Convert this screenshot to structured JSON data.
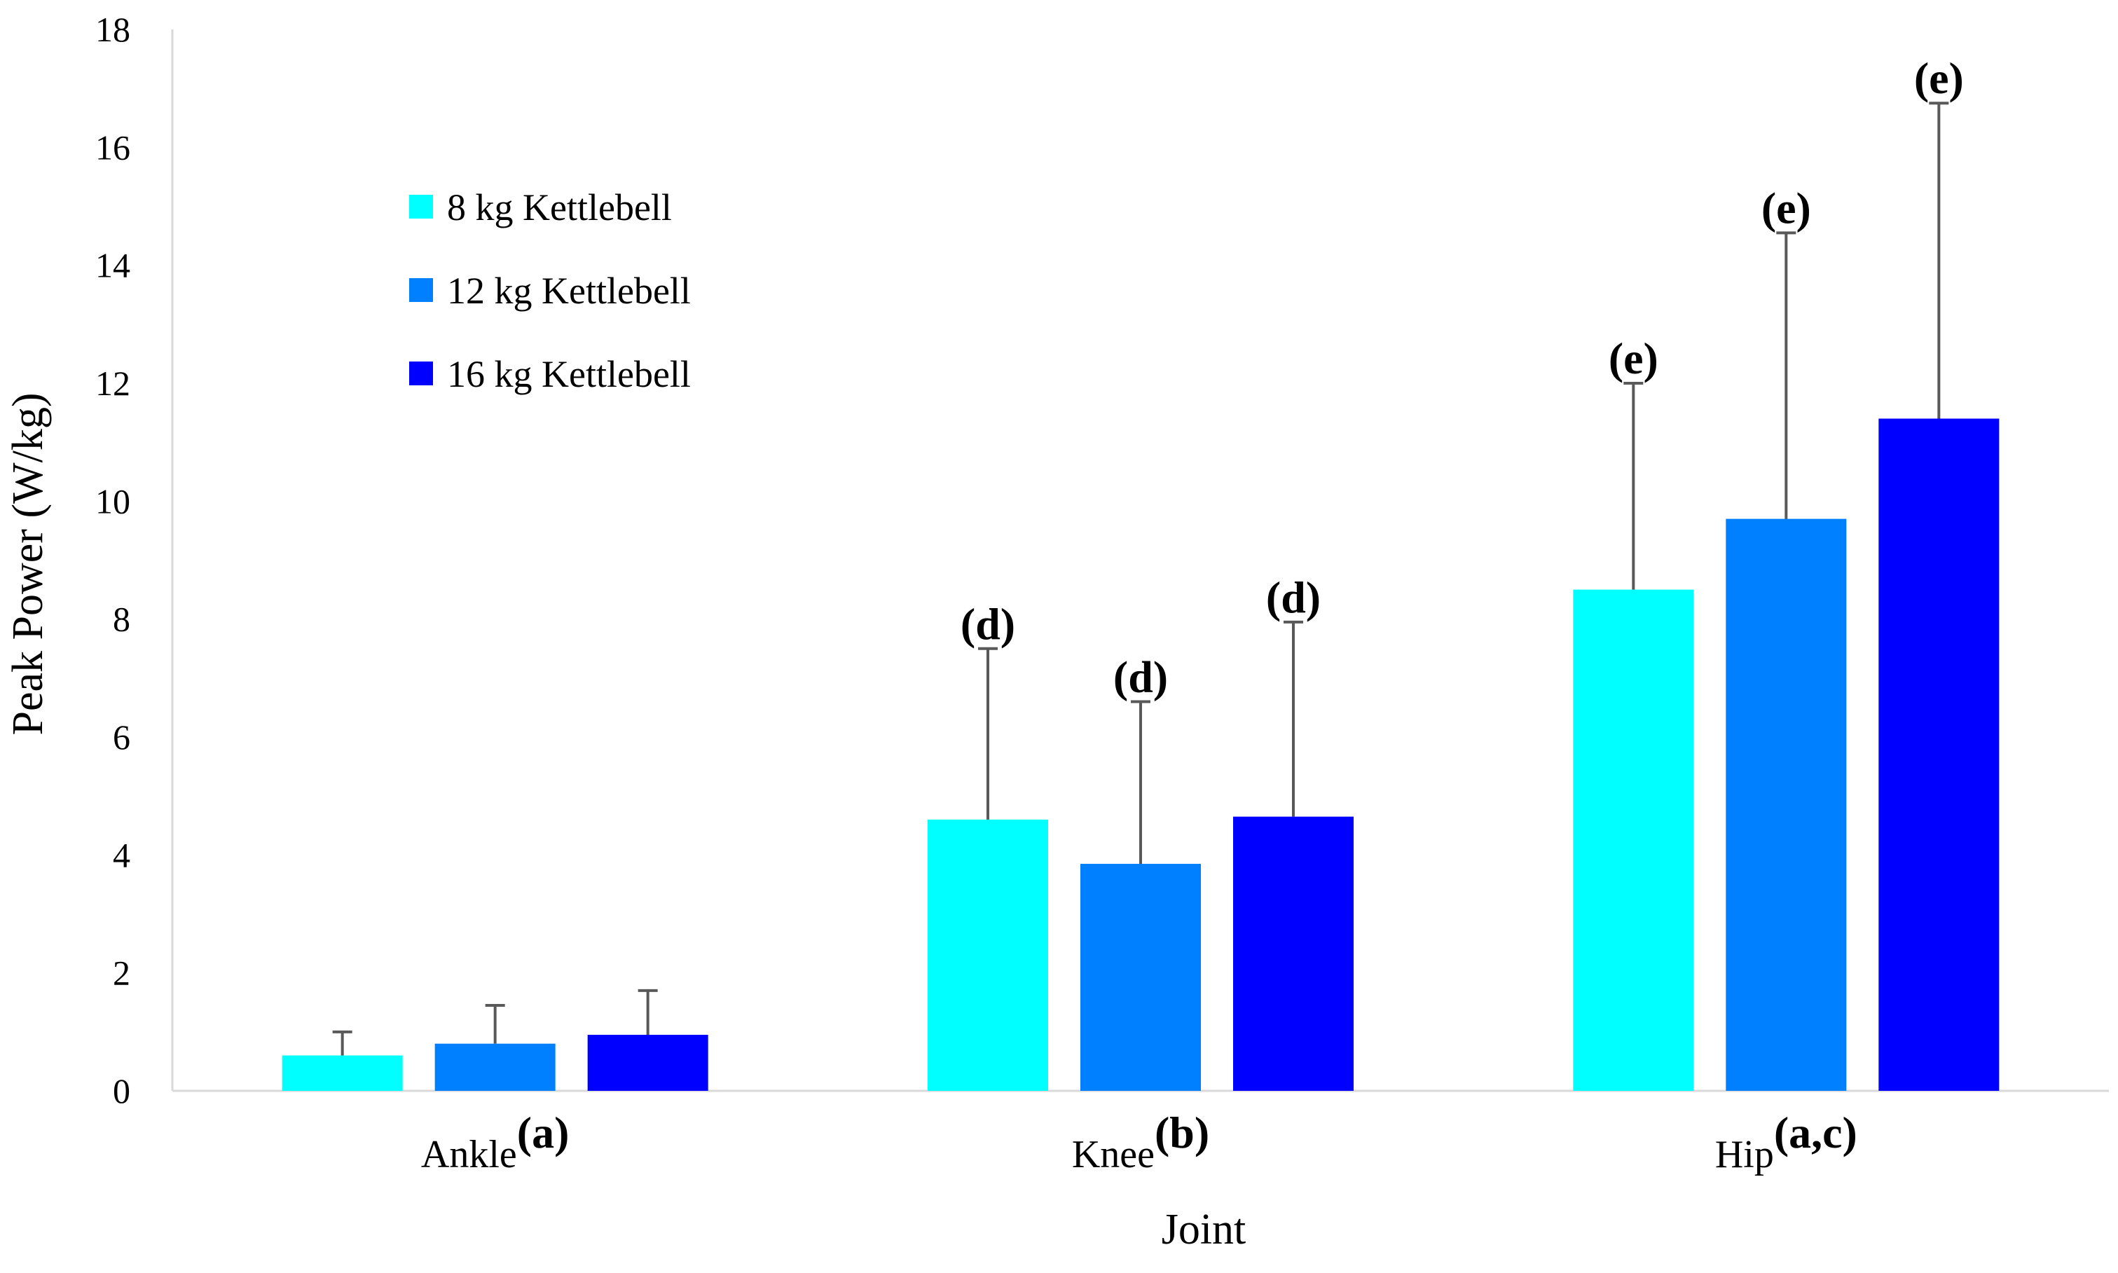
{
  "chart_data": {
    "type": "bar",
    "title": "",
    "xlabel": "Joint",
    "ylabel": "Peak Power (W/kg)",
    "ylim": [
      0,
      18
    ],
    "yticks": [
      0,
      2,
      4,
      6,
      8,
      10,
      12,
      14,
      16,
      18
    ],
    "grid": false,
    "legend_position": "top-left",
    "categories": [
      "Ankle",
      "Knee",
      "Hip"
    ],
    "category_superscripts": [
      "(a)",
      "(b)",
      "(a,c)"
    ],
    "series": [
      {
        "name": "8 kg Kettlebell",
        "color": "#00FFFF",
        "values": [
          0.6,
          4.6,
          8.5
        ],
        "error_upper": [
          1.0,
          7.5,
          12.0
        ],
        "annotations": [
          "",
          "(d)",
          "(e)"
        ]
      },
      {
        "name": "12 kg Kettlebell",
        "color": "#0080FF",
        "values": [
          0.8,
          3.85,
          9.7
        ],
        "error_upper": [
          1.45,
          6.6,
          14.55
        ],
        "annotations": [
          "",
          "(d)",
          "(e)"
        ]
      },
      {
        "name": "16 kg Kettlebell",
        "color": "#0000FF",
        "values": [
          0.95,
          4.65,
          11.4
        ],
        "error_upper": [
          1.7,
          7.95,
          16.75
        ],
        "annotations": [
          "",
          "(d)",
          "(e)"
        ]
      }
    ]
  }
}
